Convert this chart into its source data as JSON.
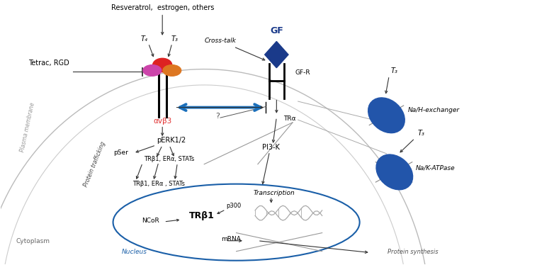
{
  "bg_color": "#ffffff",
  "nucleus_color": "#1a5fa8",
  "blue_arrow_color": "#1a6fbb",
  "red_text_color": "#e03030",
  "dark_blue": "#1a3a8a",
  "membrane_gray": "#aaaaaa",
  "arrow_color": "#333333",
  "labels": {
    "resveratrol": "Resveratrol,  estrogen, others",
    "tetrac": "Tetrac, RGD",
    "t4": "T₄",
    "t3": "T₃",
    "gf": "GF",
    "gf_r": "GF-R",
    "cross_talk": "Cross-talk",
    "avb3": "αvβ3",
    "perk": "pERK1/2",
    "pser": "pSer",
    "trbeta_cyto": "TRβ1, ERα, STATs",
    "trbeta_nuc_label": "TRβ1, ERα , STATs",
    "pi3k": "PI3-K",
    "tra": "TRα",
    "na_h": "Na/H-exchanger",
    "na_k": "Na/K-ATPase",
    "t3_upper": "T₃",
    "t3_lower": "T₃",
    "transcription": "Transcription",
    "trbeta1_nuc": "TRβ1",
    "p300": "p300",
    "ncor": "NCoR",
    "mrna": "mRNA",
    "nucleus": "Nucleus",
    "cytoplasm": "Cytoplasm",
    "plasma_membrane": "Plasma membrane",
    "protein_trafficking": "Protein trafficking",
    "protein_synthesis": "Protein synthesis",
    "question": "?"
  }
}
